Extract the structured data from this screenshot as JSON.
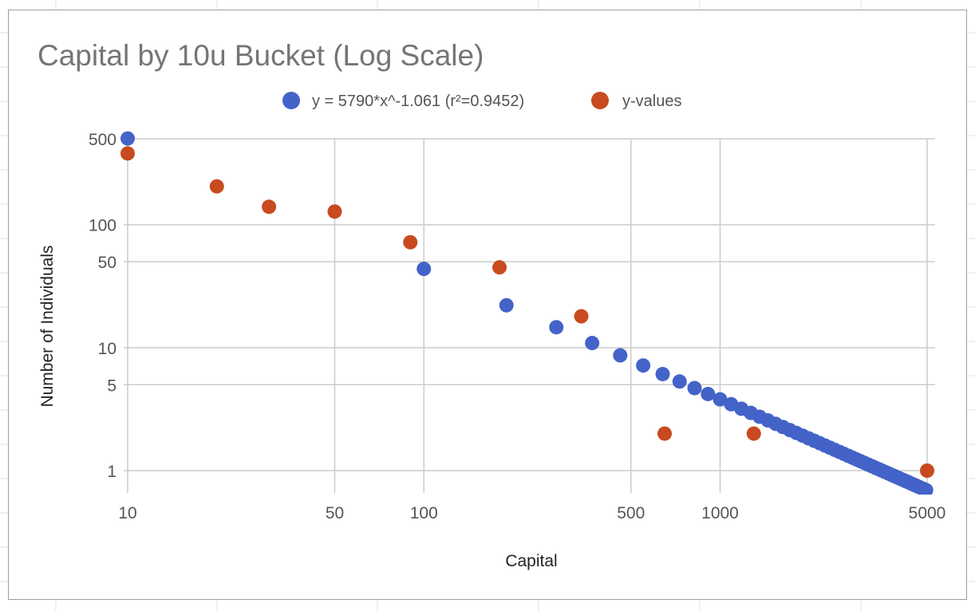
{
  "chart_data": {
    "type": "scatter",
    "title": "Capital by 10u Bucket (Log Scale)",
    "xlabel": "Capital",
    "ylabel": "Number of Individuals",
    "x_scale": "log",
    "y_scale": "log",
    "xlim": [
      10,
      5000
    ],
    "ylim": [
      0.6,
      500
    ],
    "x_ticks": [
      {
        "value": 10,
        "label": "10"
      },
      {
        "value": 50,
        "label": "50"
      },
      {
        "value": 100,
        "label": "100"
      },
      {
        "value": 500,
        "label": "500"
      },
      {
        "value": 1000,
        "label": "1000"
      },
      {
        "value": 5000,
        "label": "5000"
      }
    ],
    "y_ticks": [
      {
        "value": 1,
        "label": "1"
      },
      {
        "value": 5,
        "label": "5"
      },
      {
        "value": 10,
        "label": "10"
      },
      {
        "value": 50,
        "label": "50"
      },
      {
        "value": 100,
        "label": "100"
      },
      {
        "value": 500,
        "label": "500"
      }
    ],
    "grid": true,
    "legend_position": "top",
    "series": [
      {
        "name": "y = 5790*x^-1.061 (r²=0.9452)",
        "color": "#4363c9",
        "trendline": {
          "a": 5790,
          "b": -1.061,
          "x_start": 10,
          "x_step": 90,
          "x_end": 5000
        }
      },
      {
        "name": "y-values",
        "color": "#c84a1f",
        "points": [
          [
            10,
            380
          ],
          [
            20,
            205
          ],
          [
            30,
            140
          ],
          [
            50,
            128
          ],
          [
            90,
            72
          ],
          [
            180,
            45
          ],
          [
            340,
            18
          ],
          [
            650,
            2
          ],
          [
            1300,
            2
          ],
          [
            5000,
            1
          ]
        ]
      }
    ]
  }
}
